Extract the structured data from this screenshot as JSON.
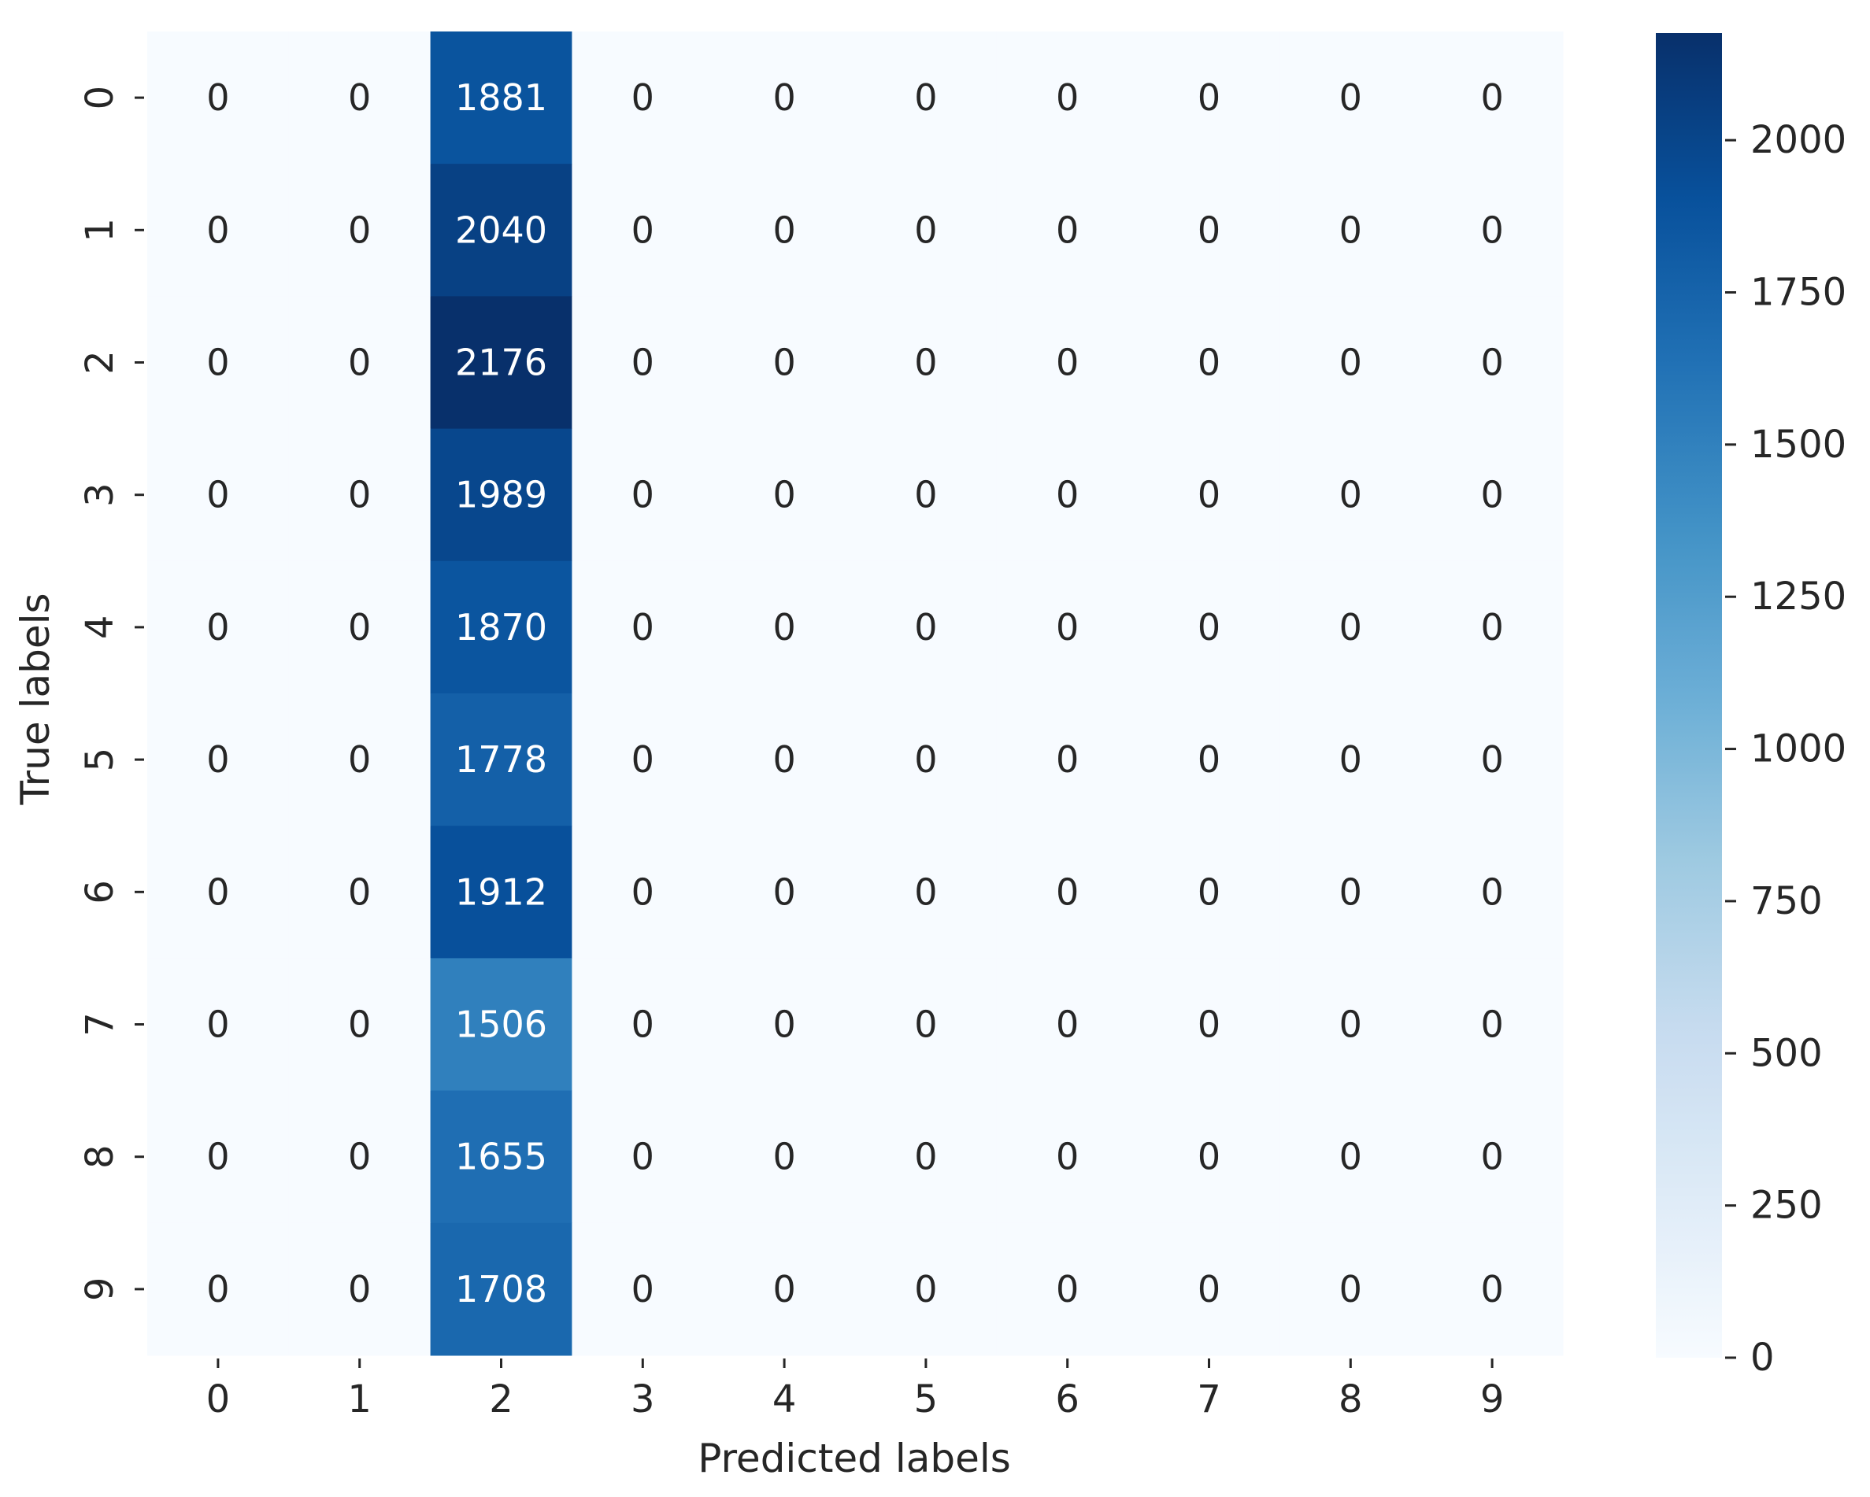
{
  "chart_data": {
    "type": "heatmap",
    "title": "",
    "xlabel": "Predicted labels",
    "ylabel": "True labels",
    "x_categories": [
      "0",
      "1",
      "2",
      "3",
      "4",
      "5",
      "6",
      "7",
      "8",
      "9"
    ],
    "y_categories": [
      "0",
      "1",
      "2",
      "3",
      "4",
      "5",
      "6",
      "7",
      "8",
      "9"
    ],
    "values": [
      [
        0,
        0,
        1881,
        0,
        0,
        0,
        0,
        0,
        0,
        0
      ],
      [
        0,
        0,
        2040,
        0,
        0,
        0,
        0,
        0,
        0,
        0
      ],
      [
        0,
        0,
        2176,
        0,
        0,
        0,
        0,
        0,
        0,
        0
      ],
      [
        0,
        0,
        1989,
        0,
        0,
        0,
        0,
        0,
        0,
        0
      ],
      [
        0,
        0,
        1870,
        0,
        0,
        0,
        0,
        0,
        0,
        0
      ],
      [
        0,
        0,
        1778,
        0,
        0,
        0,
        0,
        0,
        0,
        0
      ],
      [
        0,
        0,
        1912,
        0,
        0,
        0,
        0,
        0,
        0,
        0
      ],
      [
        0,
        0,
        1506,
        0,
        0,
        0,
        0,
        0,
        0,
        0
      ],
      [
        0,
        0,
        1655,
        0,
        0,
        0,
        0,
        0,
        0,
        0
      ],
      [
        0,
        0,
        1708,
        0,
        0,
        0,
        0,
        0,
        0,
        0
      ]
    ],
    "colormap": "Blues",
    "colorbar": {
      "range": [
        0,
        2176
      ],
      "ticks": [
        0,
        250,
        500,
        750,
        1000,
        1250,
        1500,
        1750,
        2000
      ],
      "tick_labels": [
        "0",
        "250",
        "500",
        "750",
        "1000",
        "1250",
        "1500",
        "1750",
        "2000"
      ]
    },
    "grid": false,
    "legend": "colorbar-right"
  }
}
